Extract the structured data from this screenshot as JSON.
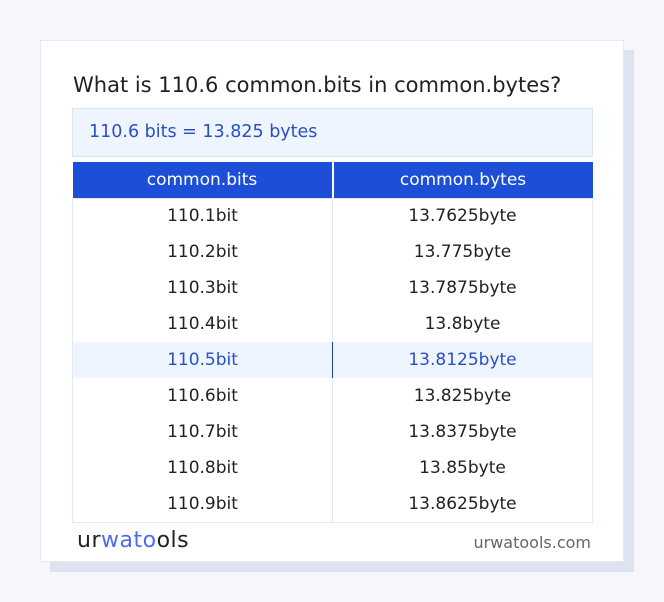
{
  "title": "What is 110.6 common.bits in common.bytes?",
  "result": "110.6 bits = 13.825 bytes",
  "table": {
    "headers": [
      "common.bits",
      "common.bytes"
    ],
    "highlighted_row": 4,
    "rows": [
      [
        "110.1bit",
        "13.7625byte"
      ],
      [
        "110.2bit",
        "13.775byte"
      ],
      [
        "110.3bit",
        "13.7875byte"
      ],
      [
        "110.4bit",
        "13.8byte"
      ],
      [
        "110.5bit",
        "13.8125byte"
      ],
      [
        "110.6bit",
        "13.825byte"
      ],
      [
        "110.7bit",
        "13.8375byte"
      ],
      [
        "110.8bit",
        "13.85byte"
      ],
      [
        "110.9bit",
        "13.8625byte"
      ]
    ]
  },
  "footer": {
    "logo": "urwatools",
    "logo_parts": [
      "ur",
      "wato",
      "ols"
    ],
    "site": "urwatools.com"
  },
  "colors": {
    "header": "#1d4ed8",
    "accent": "#2a4fc4",
    "highlight_bg": "#eef5fe"
  }
}
